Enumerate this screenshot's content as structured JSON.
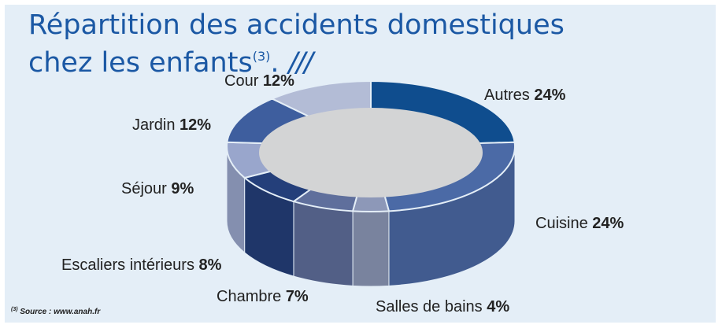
{
  "title": {
    "line1": "Répartition des accidents domestiques",
    "line2": "chez les enfants",
    "footnote_ref": "(3)",
    "dot": ".",
    "decoration": "///"
  },
  "source": {
    "ref": "(3)",
    "text": "Source : www.anah.fr"
  },
  "colors": {
    "background": "#e4eef7",
    "title": "#1b58a4",
    "center": "#d3d4d5"
  },
  "chart_data": {
    "type": "pie",
    "variant": "3d-donut",
    "categories": [
      "Autres",
      "Cuisine",
      "Salles de bains",
      "Chambre",
      "Escaliers intérieurs",
      "Séjour",
      "Jardin",
      "Cour"
    ],
    "values": [
      24,
      24,
      4,
      7,
      8,
      9,
      12,
      12
    ],
    "unit": "%",
    "value_labels": [
      "24%",
      "24%",
      "4%",
      "7%",
      "8%",
      "9%",
      "12%",
      "12%"
    ],
    "colors": [
      "#0f4d8e",
      "#4b6aa6",
      "#8d98b8",
      "#5f6f9c",
      "#243f7a",
      "#99a6cc",
      "#3e5e9e",
      "#b3bcd6"
    ]
  }
}
